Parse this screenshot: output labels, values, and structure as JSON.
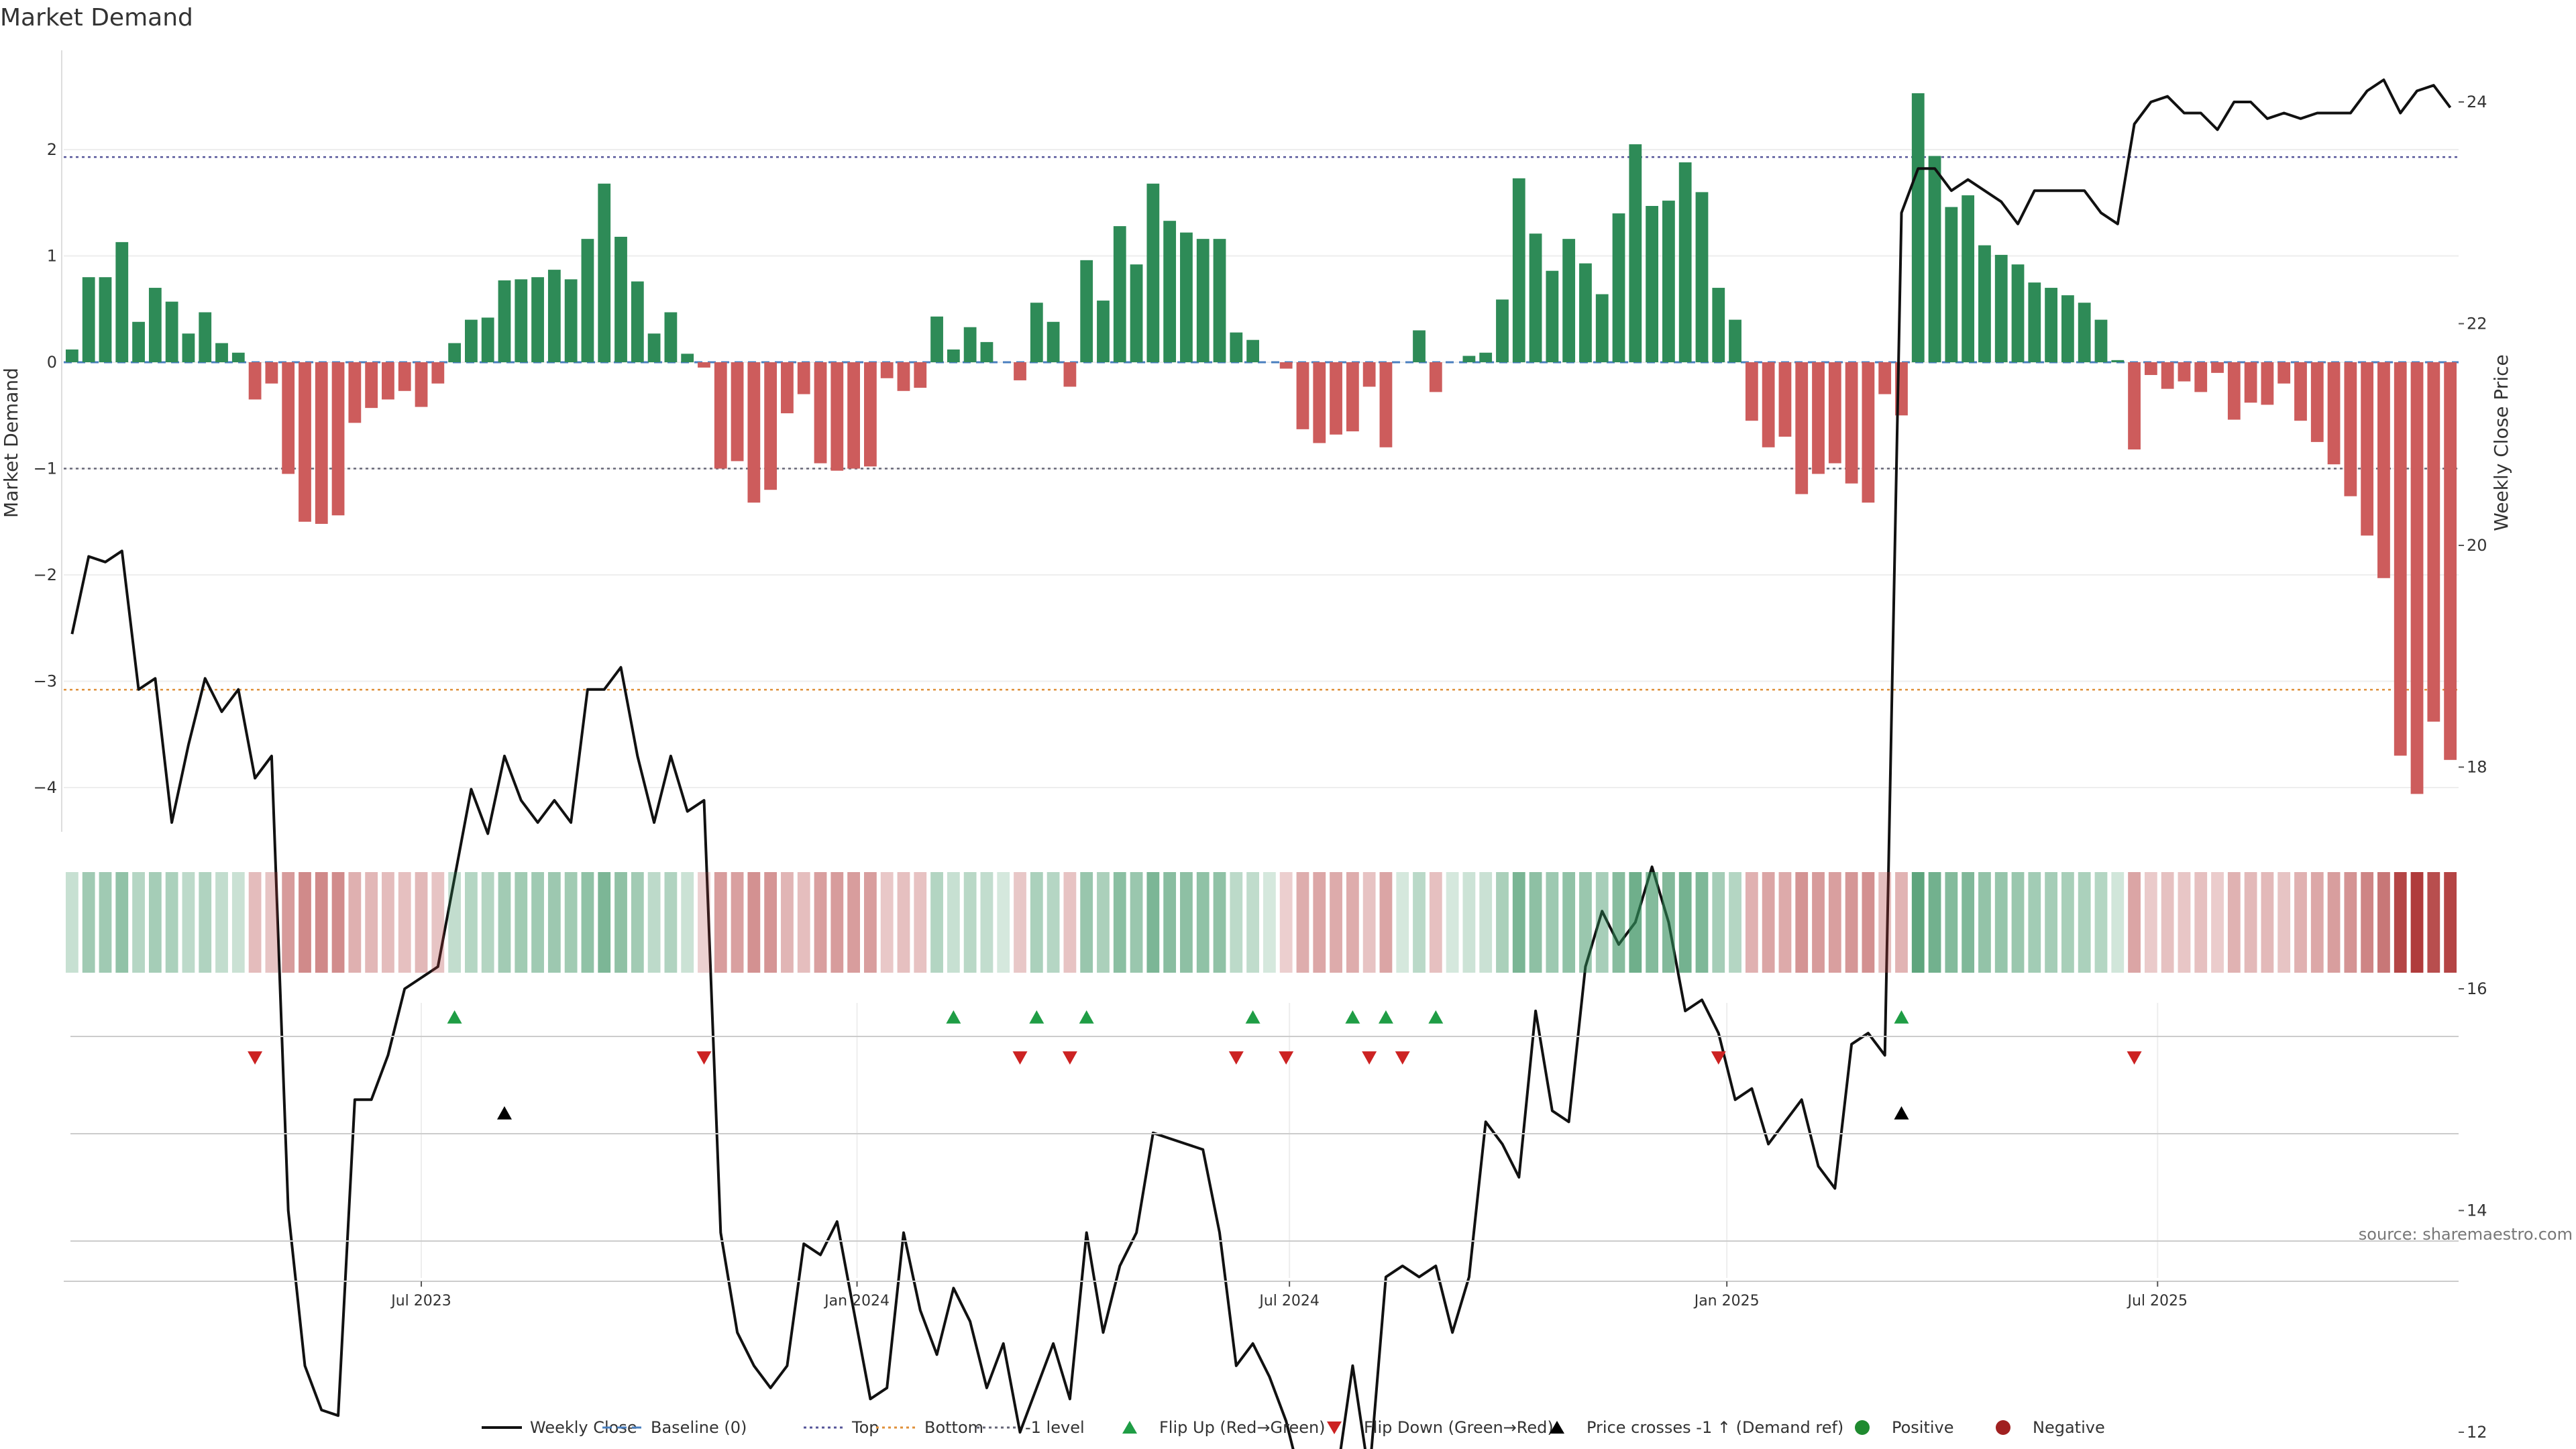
{
  "chart_data": {
    "type": "bar",
    "title": "Market Demand",
    "ylabel": "Market Demand",
    "y2label": "Weekly Close Price",
    "ylim": [
      -4.4,
      2.9
    ],
    "y2lim": [
      11.4,
      25.6
    ],
    "yticks": [
      2,
      1,
      0,
      -1,
      -2,
      -3,
      -4
    ],
    "y2ticks": [
      24,
      22,
      20,
      18,
      16,
      14,
      12
    ],
    "xticks": [
      {
        "label": "Jul 2023",
        "week": 21.5
      },
      {
        "label": "Jan 2024",
        "week": 47.7
      },
      {
        "label": "Jul 2024",
        "week": 73.7
      },
      {
        "label": "Jan 2025",
        "week": 100.0
      },
      {
        "label": "Jul 2025",
        "week": 125.9
      }
    ],
    "reference_lines": {
      "top": 1.93,
      "bottom": -3.08,
      "minus_one": -1.0,
      "baseline": 0
    },
    "weeks": 144,
    "demand": [
      0.12,
      0.8,
      0.8,
      1.13,
      0.38,
      0.7,
      0.57,
      0.27,
      0.47,
      0.18,
      0.09,
      -0.35,
      -0.2,
      -1.05,
      -1.5,
      -1.52,
      -1.44,
      -0.57,
      -0.43,
      -0.35,
      -0.27,
      -0.42,
      -0.2,
      0.18,
      0.4,
      0.42,
      0.77,
      0.78,
      0.8,
      0.87,
      0.78,
      1.16,
      1.68,
      1.18,
      0.76,
      0.27,
      0.47,
      0.08,
      -0.05,
      -1.0,
      -0.93,
      -1.32,
      -1.2,
      -0.48,
      -0.3,
      -0.95,
      -1.02,
      -1.0,
      -0.98,
      -0.15,
      -0.27,
      -0.24,
      0.43,
      0.12,
      0.33,
      0.19,
      0.0,
      -0.17,
      0.56,
      0.38,
      -0.23,
      0.96,
      0.58,
      1.28,
      0.92,
      1.68,
      1.33,
      1.22,
      1.16,
      1.16,
      0.28,
      0.21,
      0.0,
      -0.06,
      -0.63,
      -0.76,
      -0.68,
      -0.65,
      -0.23,
      -0.8,
      0.0,
      0.3,
      -0.28,
      0.0,
      0.06,
      0.09,
      0.59,
      1.73,
      1.21,
      0.86,
      1.16,
      0.93,
      0.64,
      1.4,
      2.05,
      1.47,
      1.52,
      1.88,
      1.6,
      0.7,
      0.4,
      -0.55,
      -0.8,
      -0.7,
      -1.24,
      -1.05,
      -0.95,
      -1.14,
      -1.32,
      -0.3,
      -0.5,
      2.53,
      1.94,
      1.46,
      1.57,
      1.1,
      1.01,
      0.92,
      0.75,
      0.7,
      0.63,
      0.56,
      0.4,
      0.02,
      -0.82,
      -0.12,
      -0.25,
      -0.18,
      -0.28,
      -0.1,
      -0.54,
      -0.38,
      -0.4,
      -0.2,
      -0.55,
      -0.75,
      -0.96,
      -1.26,
      -1.63,
      -2.03,
      -3.7,
      -4.06,
      -3.38,
      -3.74
    ],
    "close": [
      19.2,
      19.9,
      19.85,
      19.95,
      18.7,
      18.8,
      17.5,
      18.2,
      18.8,
      18.5,
      18.7,
      17.9,
      18.1,
      14.0,
      12.6,
      12.2,
      12.15,
      15.0,
      15.0,
      15.4,
      16.0,
      16.1,
      16.2,
      17.0,
      17.8,
      17.4,
      18.1,
      17.7,
      17.5,
      17.7,
      17.5,
      18.7,
      18.7,
      18.9,
      18.1,
      17.5,
      18.1,
      17.6,
      17.7,
      13.8,
      12.9,
      12.6,
      12.4,
      12.6,
      13.7,
      13.6,
      13.9,
      13.1,
      12.3,
      12.4,
      13.8,
      13.1,
      12.7,
      13.3,
      13.0,
      12.4,
      12.8,
      12.0,
      12.4,
      12.8,
      12.3,
      13.8,
      12.9,
      13.5,
      13.8,
      14.7,
      14.65,
      14.6,
      14.55,
      13.8,
      12.6,
      12.8,
      12.5,
      12.1,
      11.5,
      11.55,
      11.55,
      12.6,
      11.6,
      13.4,
      13.5,
      13.4,
      13.5,
      12.9,
      13.4,
      14.8,
      14.6,
      14.3,
      15.8,
      14.9,
      14.8,
      16.2,
      16.7,
      16.4,
      16.6,
      17.1,
      16.6,
      15.8,
      15.9,
      15.6,
      15.0,
      15.1,
      14.6,
      14.8,
      15.0,
      14.4,
      14.2,
      15.5,
      15.6,
      15.4,
      23.0,
      23.4,
      23.4,
      23.2,
      23.3,
      23.2,
      23.1,
      22.9,
      23.2,
      23.2,
      23.2,
      23.2,
      23.0,
      22.9,
      23.8,
      24.0,
      24.05,
      23.9,
      23.9,
      23.75,
      24.0,
      24.0,
      23.85,
      23.9,
      23.85,
      23.9,
      23.9,
      23.9,
      24.1,
      24.2,
      23.9,
      24.1,
      24.15,
      23.95
    ],
    "flip_up_weeks": [
      23,
      53,
      58,
      61,
      71,
      77,
      79,
      82,
      110
    ],
    "flip_down_weeks": [
      11,
      38,
      57,
      60,
      70,
      73,
      78,
      80,
      99,
      124
    ],
    "price_cross_weeks": [
      26,
      110
    ],
    "legend": [
      {
        "label": "Weekly Close",
        "kind": "line",
        "color": "#111111"
      },
      {
        "label": "Baseline (0)",
        "kind": "dash",
        "color": "#4a7fbf"
      },
      {
        "label": "Top",
        "kind": "dot",
        "color": "#555599"
      },
      {
        "label": "Bottom",
        "kind": "dot",
        "color": "#e0903a"
      },
      {
        "label": "-1 level",
        "kind": "dot",
        "color": "#666677"
      },
      {
        "label": "Flip Up (Red→Green)",
        "kind": "tri-up",
        "color": "#1f9d45"
      },
      {
        "label": "Flip Down (Green→Red)",
        "kind": "tri-down",
        "color": "#cc2222"
      },
      {
        "label": "Price crosses -1 ↑ (Demand ref)",
        "kind": "tri-up",
        "color": "#000000"
      },
      {
        "label": "Positive",
        "kind": "circle",
        "color": "#1f8a2f"
      },
      {
        "label": "Negative",
        "kind": "circle",
        "color": "#a02020"
      }
    ],
    "colors": {
      "positive_bar": "#2e8b57",
      "negative_bar": "#cd5c5c",
      "close_line": "#111111",
      "top_line": "#555599",
      "bottom_line": "#e0903a",
      "minus_one_line": "#666677",
      "baseline": "#4a7fbf"
    }
  },
  "source": "source: sharemaestro.com"
}
